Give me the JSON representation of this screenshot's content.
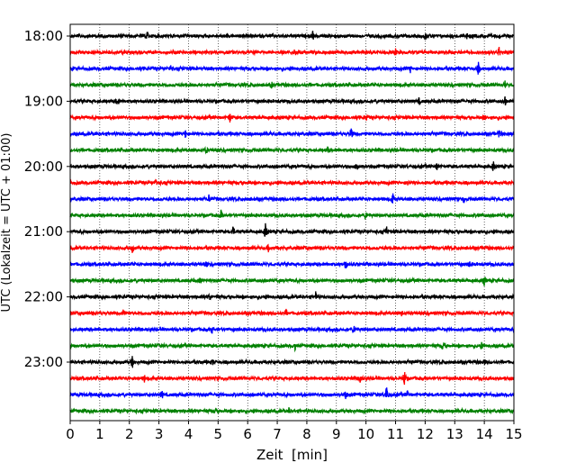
{
  "chart_data": {
    "type": "line",
    "title": "",
    "xlabel": "Zeit  [min]",
    "ylabel": "UTC (Lokalzeit = UTC + 01:00)",
    "xlim": [
      0,
      15
    ],
    "x_ticks": [
      "0",
      "1",
      "2",
      "3",
      "4",
      "5",
      "6",
      "7",
      "8",
      "9",
      "10",
      "11",
      "12",
      "13",
      "14",
      "15"
    ],
    "y_tick_labels": [
      "18:00",
      "19:00",
      "20:00",
      "21:00",
      "22:00",
      "23:00"
    ],
    "trace_interval_minutes": 15,
    "start_time": "18:00",
    "trace_count": 24,
    "trace_colors": [
      "#000000",
      "#ff0000",
      "#0000ff",
      "#008000"
    ],
    "grid": "vertical dotted lines at each minute",
    "series": [
      {
        "start": "18:00",
        "color": "#000000",
        "events": [
          {
            "x": 2.6,
            "amp": 0.4
          },
          {
            "x": 8.2,
            "amp": 0.35
          },
          {
            "x": 12.0,
            "amp": 0.35
          },
          {
            "x": 13.4,
            "amp": 0.3
          }
        ]
      },
      {
        "start": "18:15",
        "color": "#ff0000",
        "events": [
          {
            "x": 7.6,
            "amp": 0.3
          },
          {
            "x": 11.0,
            "amp": 0.3
          },
          {
            "x": 14.5,
            "amp": 0.4
          }
        ]
      },
      {
        "start": "18:30",
        "color": "#0000ff",
        "events": [
          {
            "x": 3.4,
            "amp": 0.3
          },
          {
            "x": 11.5,
            "amp": 0.3
          },
          {
            "x": 13.8,
            "amp": 0.45
          }
        ]
      },
      {
        "start": "18:45",
        "color": "#008000",
        "events": [
          {
            "x": 6.8,
            "amp": 0.3
          },
          {
            "x": 14.7,
            "amp": 0.3
          }
        ]
      },
      {
        "start": "19:00",
        "color": "#000000",
        "events": [
          {
            "x": 1.6,
            "amp": 0.4
          },
          {
            "x": 11.8,
            "amp": 0.3
          },
          {
            "x": 14.7,
            "amp": 0.4
          }
        ]
      },
      {
        "start": "19:15",
        "color": "#ff0000",
        "events": [
          {
            "x": 5.4,
            "amp": 0.45
          },
          {
            "x": 10.0,
            "amp": 0.3
          },
          {
            "x": 14.0,
            "amp": 0.3
          }
        ]
      },
      {
        "start": "19:30",
        "color": "#0000ff",
        "events": [
          {
            "x": 3.9,
            "amp": 0.35
          },
          {
            "x": 9.5,
            "amp": 0.45
          },
          {
            "x": 14.5,
            "amp": 0.4
          }
        ]
      },
      {
        "start": "19:45",
        "color": "#008000",
        "events": [
          {
            "x": 4.6,
            "amp": 0.3
          },
          {
            "x": 8.7,
            "amp": 0.3
          }
        ]
      },
      {
        "start": "20:00",
        "color": "#000000",
        "events": [
          {
            "x": 9.7,
            "amp": 0.45
          },
          {
            "x": 12.4,
            "amp": 0.3
          },
          {
            "x": 14.3,
            "amp": 0.4
          }
        ]
      },
      {
        "start": "20:15",
        "color": "#ff0000",
        "events": [
          {
            "x": 2.9,
            "amp": 0.3
          },
          {
            "x": 11.4,
            "amp": 0.3
          }
        ]
      },
      {
        "start": "20:30",
        "color": "#0000ff",
        "events": [
          {
            "x": 4.7,
            "amp": 0.35
          },
          {
            "x": 10.9,
            "amp": 0.45
          },
          {
            "x": 13.3,
            "amp": 0.3
          }
        ]
      },
      {
        "start": "20:45",
        "color": "#008000",
        "events": [
          {
            "x": 5.1,
            "amp": 0.35
          },
          {
            "x": 10.0,
            "amp": 0.35
          }
        ]
      },
      {
        "start": "21:00",
        "color": "#000000",
        "events": [
          {
            "x": 5.5,
            "amp": 0.4
          },
          {
            "x": 6.6,
            "amp": 0.55
          },
          {
            "x": 10.7,
            "amp": 0.35
          }
        ]
      },
      {
        "start": "21:15",
        "color": "#ff0000",
        "events": [
          {
            "x": 2.1,
            "amp": 0.35
          },
          {
            "x": 6.7,
            "amp": 0.3
          }
        ]
      },
      {
        "start": "21:30",
        "color": "#0000ff",
        "events": [
          {
            "x": 4.6,
            "amp": 0.3
          },
          {
            "x": 9.3,
            "amp": 0.45
          },
          {
            "x": 13.5,
            "amp": 0.3
          }
        ]
      },
      {
        "start": "21:45",
        "color": "#008000",
        "events": [
          {
            "x": 4.4,
            "amp": 0.35
          },
          {
            "x": 14.0,
            "amp": 0.35
          }
        ]
      },
      {
        "start": "22:00",
        "color": "#000000",
        "events": [
          {
            "x": 4.7,
            "amp": 0.3
          },
          {
            "x": 8.3,
            "amp": 0.35
          }
        ]
      },
      {
        "start": "22:15",
        "color": "#ff0000",
        "events": [
          {
            "x": 1.8,
            "amp": 0.3
          },
          {
            "x": 7.3,
            "amp": 0.3
          },
          {
            "x": 11.2,
            "amp": 0.3
          }
        ]
      },
      {
        "start": "22:30",
        "color": "#0000ff",
        "events": [
          {
            "x": 4.8,
            "amp": 0.3
          },
          {
            "x": 9.6,
            "amp": 0.35
          }
        ]
      },
      {
        "start": "22:45",
        "color": "#008000",
        "events": [
          {
            "x": 7.6,
            "amp": 0.3
          },
          {
            "x": 12.6,
            "amp": 0.4
          },
          {
            "x": 13.9,
            "amp": 0.3
          }
        ]
      },
      {
        "start": "23:00",
        "color": "#000000",
        "events": [
          {
            "x": 2.1,
            "amp": 0.45
          },
          {
            "x": 4.8,
            "amp": 0.35
          },
          {
            "x": 14.0,
            "amp": 0.3
          }
        ]
      },
      {
        "start": "23:15",
        "color": "#ff0000",
        "events": [
          {
            "x": 2.5,
            "amp": 0.35
          },
          {
            "x": 9.8,
            "amp": 0.45
          },
          {
            "x": 11.3,
            "amp": 0.55
          }
        ]
      },
      {
        "start": "23:30",
        "color": "#0000ff",
        "events": [
          {
            "x": 3.1,
            "amp": 0.35
          },
          {
            "x": 9.3,
            "amp": 0.5
          },
          {
            "x": 10.7,
            "amp": 0.6
          },
          {
            "x": 11.4,
            "amp": 0.3
          }
        ]
      },
      {
        "start": "23:45",
        "color": "#008000",
        "events": [
          {
            "x": 4.9,
            "amp": 0.3
          },
          {
            "x": 7.4,
            "amp": 0.3
          }
        ]
      }
    ]
  }
}
